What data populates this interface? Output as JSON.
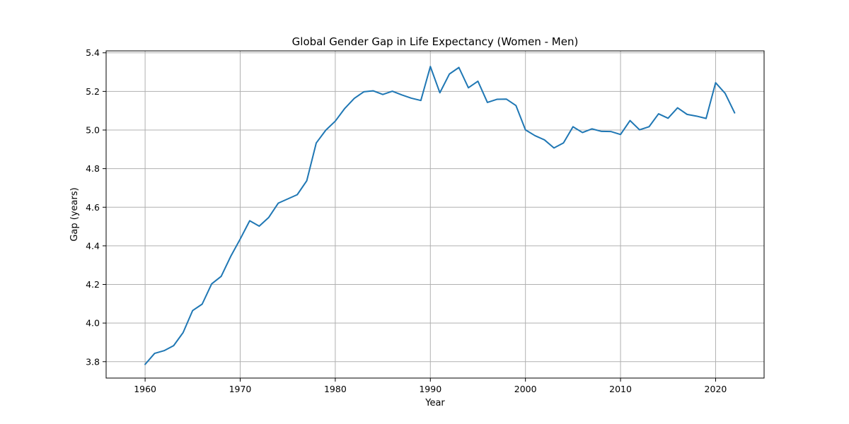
{
  "chart_data": {
    "type": "line",
    "title": "Global Gender Gap in Life Expectancy (Women - Men)",
    "xlabel": "Year",
    "ylabel": "Gap (years)",
    "xlim": [
      1955.9,
      2025.1
    ],
    "ylim": [
      3.715,
      5.41
    ],
    "xticks": [
      1960,
      1970,
      1980,
      1990,
      2000,
      2010,
      2020
    ],
    "yticks": [
      3.8,
      4.0,
      4.2,
      4.4,
      4.6,
      4.8,
      5.0,
      5.2,
      5.4
    ],
    "ytick_labels": [
      "3.8",
      "4.0",
      "4.2",
      "4.4",
      "4.6",
      "4.8",
      "5.0",
      "5.2",
      "5.4"
    ],
    "grid": true,
    "series_color": "#1f77b4",
    "x": [
      1960,
      1961,
      1962,
      1963,
      1964,
      1965,
      1966,
      1967,
      1968,
      1969,
      1970,
      1971,
      1972,
      1973,
      1974,
      1975,
      1976,
      1977,
      1978,
      1979,
      1980,
      1981,
      1982,
      1983,
      1984,
      1985,
      1986,
      1987,
      1988,
      1989,
      1990,
      1991,
      1992,
      1993,
      1994,
      1995,
      1996,
      1997,
      1998,
      1999,
      2000,
      2001,
      2002,
      2003,
      2004,
      2005,
      2006,
      2007,
      2008,
      2009,
      2010,
      2011,
      2012,
      2013,
      2014,
      2015,
      2016,
      2017,
      2018,
      2019,
      2020,
      2021,
      2022
    ],
    "y": [
      3.786,
      3.843,
      3.857,
      3.883,
      3.951,
      4.065,
      4.098,
      4.203,
      4.242,
      4.345,
      4.435,
      4.53,
      4.502,
      4.547,
      4.621,
      4.643,
      4.665,
      4.737,
      4.933,
      4.999,
      5.046,
      5.112,
      5.164,
      5.198,
      5.203,
      5.184,
      5.201,
      5.182,
      5.165,
      5.153,
      5.329,
      5.193,
      5.29,
      5.324,
      5.219,
      5.253,
      5.143,
      5.159,
      5.16,
      5.127,
      5.001,
      4.971,
      4.949,
      4.907,
      4.933,
      5.017,
      4.987,
      5.006,
      4.993,
      4.992,
      4.977,
      5.049,
      5.001,
      5.017,
      5.084,
      5.061,
      5.115,
      5.081,
      5.072,
      5.06,
      5.245,
      5.19,
      5.089
    ]
  }
}
